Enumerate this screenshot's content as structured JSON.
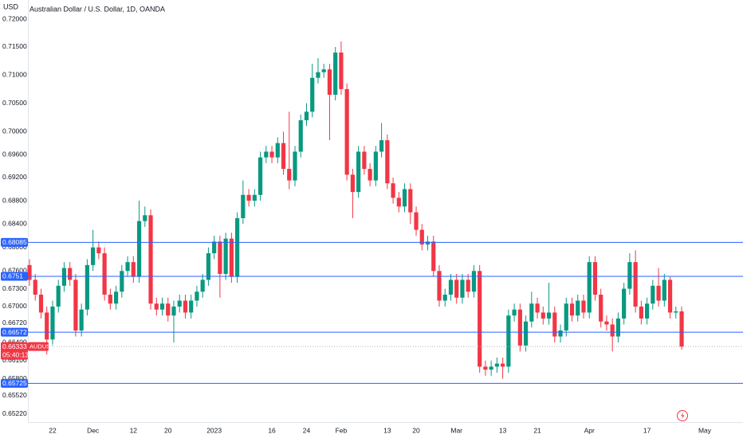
{
  "chart_data": {
    "type": "candlestick",
    "title": "Australian Dollar / U.S. Dollar, 1D, OANDA",
    "y_axis_label": "USD",
    "log_scale": true,
    "grid": false,
    "up_color": "#089981",
    "down_color": "#f23645",
    "level_color": "#2962ff",
    "ylim": [
      0.6509,
      0.72346
    ],
    "yticks": [
      {
        "value": 0.72,
        "label": "0.72000"
      },
      {
        "value": 0.715,
        "label": "0.71500"
      },
      {
        "value": 0.71,
        "label": "0.71000"
      },
      {
        "value": 0.705,
        "label": "0.70500"
      },
      {
        "value": 0.7,
        "label": "0.70000"
      },
      {
        "value": 0.696,
        "label": "0.69600"
      },
      {
        "value": 0.692,
        "label": "0.69200"
      },
      {
        "value": 0.688,
        "label": "0.68800"
      },
      {
        "value": 0.684,
        "label": "0.68400"
      },
      {
        "value": 0.68,
        "label": "0.68000"
      },
      {
        "value": 0.676,
        "label": "0.67600"
      },
      {
        "value": 0.673,
        "label": "0.67300"
      },
      {
        "value": 0.67,
        "label": "0.67000"
      },
      {
        "value": 0.6672,
        "label": "0.66720"
      },
      {
        "value": 0.664,
        "label": "0.66400"
      },
      {
        "value": 0.661,
        "label": "0.66100"
      },
      {
        "value": 0.658,
        "label": "0.65800"
      },
      {
        "value": 0.6552,
        "label": "0.65520"
      },
      {
        "value": 0.6522,
        "label": "0.65220"
      }
    ],
    "levels": [
      0.68085,
      0.6751,
      0.66572,
      0.65725
    ],
    "last_price": 0.66333,
    "symbol": "AUDUSD",
    "countdown": "05:40:13",
    "categories": [
      null,
      null,
      null,
      null,
      "22",
      null,
      null,
      null,
      null,
      null,
      null,
      "Dec",
      null,
      null,
      null,
      null,
      null,
      null,
      "12",
      null,
      null,
      null,
      null,
      null,
      "20",
      null,
      null,
      null,
      null,
      null,
      null,
      null,
      "2023",
      null,
      null,
      null,
      null,
      null,
      null,
      null,
      null,
      null,
      "16",
      null,
      null,
      null,
      null,
      null,
      "24",
      null,
      null,
      null,
      null,
      null,
      "Feb",
      null,
      null,
      null,
      null,
      null,
      null,
      null,
      "13",
      null,
      null,
      null,
      null,
      "20",
      null,
      null,
      null,
      null,
      null,
      null,
      "Mar",
      null,
      null,
      null,
      null,
      null,
      null,
      null,
      "13",
      null,
      null,
      null,
      null,
      null,
      "21",
      null,
      null,
      null,
      null,
      null,
      null,
      null,
      null,
      "Apr",
      null,
      null,
      null,
      null,
      null,
      null,
      null,
      null,
      null,
      "17",
      null,
      null,
      null,
      null,
      null,
      null,
      null,
      null,
      null,
      "May"
    ],
    "open": [
      0.677,
      0.6745,
      0.672,
      0.669,
      0.6645,
      0.67,
      0.6735,
      0.6765,
      0.6745,
      0.666,
      0.6695,
      0.677,
      0.68,
      0.679,
      0.672,
      0.6705,
      0.6725,
      0.676,
      0.6775,
      0.675,
      0.6845,
      0.6855,
      0.6705,
      0.6695,
      0.6705,
      0.6685,
      0.67,
      0.671,
      0.669,
      0.671,
      0.6725,
      0.6745,
      0.679,
      0.681,
      0.6755,
      0.6815,
      0.675,
      0.685,
      0.689,
      0.688,
      0.689,
      0.6955,
      0.6965,
      0.6955,
      0.698,
      0.6935,
      0.6915,
      0.6965,
      0.702,
      0.7035,
      0.7095,
      0.7105,
      0.711,
      0.7065,
      0.714,
      0.7075,
      0.6925,
      0.6895,
      0.6965,
      0.6935,
      0.6915,
      0.6965,
      0.6985,
      0.691,
      0.6885,
      0.687,
      0.69,
      0.686,
      0.683,
      0.6805,
      0.681,
      0.676,
      0.671,
      0.672,
      0.6745,
      0.6715,
      0.6745,
      0.6725,
      0.676,
      0.66,
      0.6595,
      0.66,
      0.6605,
      0.66,
      0.6685,
      0.6695,
      0.6635,
      0.6675,
      0.6705,
      0.669,
      0.668,
      0.669,
      0.665,
      0.666,
      0.6705,
      0.6685,
      0.671,
      0.669,
      0.6775,
      0.672,
      0.6675,
      0.667,
      0.665,
      0.668,
      0.673,
      0.6775,
      0.67,
      0.668,
      0.6705,
      0.6735,
      0.671,
      0.6745,
      0.669,
      0.6692,
      null,
      null,
      null,
      null
    ],
    "high": [
      0.678,
      0.6755,
      0.673,
      0.67,
      0.671,
      0.6745,
      0.6775,
      0.6775,
      0.6755,
      0.6705,
      0.678,
      0.683,
      0.681,
      0.68,
      0.673,
      0.6735,
      0.677,
      0.6785,
      0.6785,
      0.688,
      0.687,
      0.6865,
      0.6715,
      0.6715,
      0.6715,
      0.671,
      0.672,
      0.672,
      0.672,
      0.6735,
      0.6755,
      0.68,
      0.682,
      0.682,
      0.6825,
      0.6825,
      0.686,
      0.6915,
      0.69,
      0.69,
      0.6965,
      0.6975,
      0.6975,
      0.699,
      0.7,
      0.7035,
      0.6975,
      0.703,
      0.705,
      0.712,
      0.713,
      0.712,
      0.712,
      0.715,
      0.716,
      0.7085,
      0.6935,
      0.6975,
      0.6975,
      0.6945,
      0.6975,
      0.7015,
      0.6995,
      0.692,
      0.6895,
      0.691,
      0.691,
      0.687,
      0.684,
      0.682,
      0.682,
      0.677,
      0.673,
      0.6755,
      0.6755,
      0.6755,
      0.6755,
      0.677,
      0.677,
      0.661,
      0.661,
      0.6615,
      0.6615,
      0.6695,
      0.6705,
      0.6705,
      0.6685,
      0.6725,
      0.6715,
      0.67,
      0.674,
      0.67,
      0.667,
      0.6715,
      0.6715,
      0.672,
      0.672,
      0.6785,
      0.6785,
      0.673,
      0.6685,
      0.668,
      0.669,
      0.674,
      0.679,
      0.6795,
      0.671,
      0.6715,
      0.6745,
      0.6765,
      0.6755,
      0.675,
      0.67,
      0.67,
      null,
      null,
      null,
      null
    ],
    "low": [
      0.6735,
      0.671,
      0.668,
      0.662,
      0.6635,
      0.669,
      0.6725,
      0.6735,
      0.665,
      0.665,
      0.6685,
      0.676,
      0.678,
      0.671,
      0.6695,
      0.6695,
      0.6715,
      0.675,
      0.674,
      0.674,
      0.6835,
      0.6695,
      0.6685,
      0.6685,
      0.6675,
      0.664,
      0.669,
      0.668,
      0.668,
      0.67,
      0.6715,
      0.6735,
      0.678,
      0.6715,
      0.6745,
      0.674,
      0.674,
      0.684,
      0.687,
      0.687,
      0.688,
      0.6945,
      0.6945,
      0.6945,
      0.6925,
      0.69,
      0.6905,
      0.6955,
      0.701,
      0.7025,
      0.7085,
      0.7095,
      0.6985,
      0.7055,
      0.7065,
      0.6915,
      0.685,
      0.6885,
      0.6925,
      0.6905,
      0.6905,
      0.6955,
      0.69,
      0.6875,
      0.686,
      0.686,
      0.684,
      0.682,
      0.6795,
      0.6795,
      0.675,
      0.67,
      0.67,
      0.671,
      0.6705,
      0.6705,
      0.6715,
      0.6715,
      0.659,
      0.6585,
      0.6585,
      0.659,
      0.658,
      0.659,
      0.6675,
      0.6625,
      0.6625,
      0.6665,
      0.668,
      0.667,
      0.667,
      0.664,
      0.664,
      0.665,
      0.6675,
      0.6675,
      0.668,
      0.668,
      0.671,
      0.6665,
      0.666,
      0.6625,
      0.664,
      0.667,
      0.672,
      0.669,
      0.667,
      0.667,
      0.6695,
      0.67,
      0.67,
      0.668,
      0.668,
      0.6628,
      null,
      null,
      null,
      null
    ],
    "close": [
      0.6745,
      0.672,
      0.669,
      0.6645,
      0.67,
      0.6735,
      0.6765,
      0.6745,
      0.666,
      0.6695,
      0.677,
      0.68,
      0.679,
      0.672,
      0.6705,
      0.6725,
      0.676,
      0.6775,
      0.675,
      0.6845,
      0.6855,
      0.6705,
      0.6695,
      0.6705,
      0.6685,
      0.67,
      0.671,
      0.669,
      0.671,
      0.6725,
      0.6745,
      0.679,
      0.681,
      0.6755,
      0.6815,
      0.675,
      0.685,
      0.689,
      0.688,
      0.689,
      0.6955,
      0.6965,
      0.6955,
      0.698,
      0.6935,
      0.6915,
      0.6965,
      0.702,
      0.7035,
      0.7095,
      0.7105,
      0.711,
      0.7065,
      0.714,
      0.7075,
      0.6925,
      0.6895,
      0.6965,
      0.6935,
      0.6915,
      0.6965,
      0.6985,
      0.691,
      0.6885,
      0.687,
      0.69,
      0.686,
      0.683,
      0.6805,
      0.681,
      0.676,
      0.671,
      0.672,
      0.6745,
      0.6715,
      0.6745,
      0.6725,
      0.676,
      0.66,
      0.6595,
      0.66,
      0.6605,
      0.66,
      0.6685,
      0.6695,
      0.6635,
      0.6675,
      0.6705,
      0.669,
      0.668,
      0.669,
      0.665,
      0.666,
      0.6705,
      0.6685,
      0.671,
      0.669,
      0.6775,
      0.672,
      0.6675,
      0.667,
      0.665,
      0.668,
      0.673,
      0.6775,
      0.67,
      0.668,
      0.6705,
      0.6735,
      0.671,
      0.6745,
      0.669,
      0.6692,
      0.6633,
      null,
      null,
      null,
      null
    ]
  }
}
